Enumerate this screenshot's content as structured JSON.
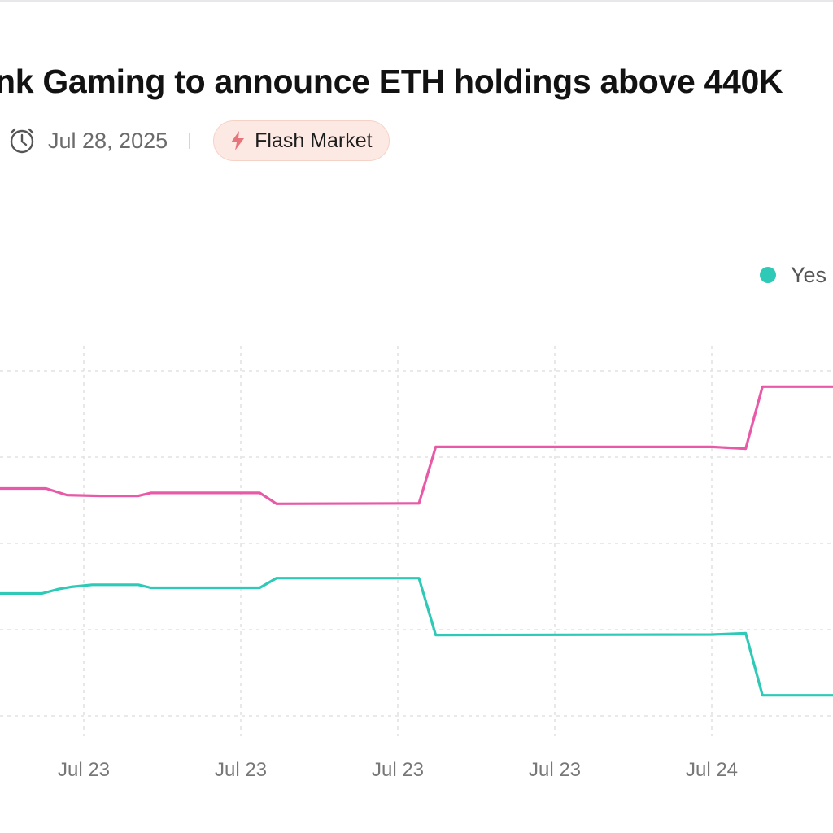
{
  "header": {
    "title": "nk Gaming to announce ETH holdings above 440K",
    "date": "Jul 28, 2025",
    "badge_label": "Flash Market",
    "clock_icon": "clock-icon",
    "badge_icon": "lightning-bolt-icon"
  },
  "legend": {
    "yes_label": "Yes"
  },
  "colors": {
    "yes": "#2ec9b7",
    "no": "#e85aa8",
    "badge_bg": "#fde9e3",
    "badge_icon": "#e8737a",
    "grid": "#e2e2e2",
    "tick_text": "#777777"
  },
  "chart_data": {
    "type": "line",
    "x_tick_labels": [
      "Jul 23",
      "Jul 23",
      "Jul 23",
      "Jul 23",
      "Jul 24"
    ],
    "grid": true,
    "legend_placement": "top-right",
    "series": [
      {
        "name": "Yes",
        "color": "#2ec9b7",
        "x": [
          0,
          0.05,
          0.07,
          0.085,
          0.11,
          0.165,
          0.18,
          0.31,
          0.33,
          0.5,
          0.52,
          0.85,
          0.89,
          0.91,
          1.0
        ],
        "y": [
          38,
          38,
          39,
          39.5,
          40,
          40,
          39.3,
          39.3,
          41.5,
          41.5,
          28.5,
          28.6,
          28.9,
          14.7,
          14.7
        ]
      },
      {
        "name": "",
        "color": "#e85aa8",
        "x": [
          0,
          0.055,
          0.08,
          0.12,
          0.165,
          0.18,
          0.31,
          0.33,
          0.5,
          0.52,
          0.85,
          0.89,
          0.91,
          1.0
        ],
        "y": [
          62,
          62,
          60.5,
          60.3,
          60.3,
          61,
          61,
          58.5,
          58.6,
          71.5,
          71.5,
          71.1,
          85.3,
          85.3
        ]
      }
    ]
  }
}
